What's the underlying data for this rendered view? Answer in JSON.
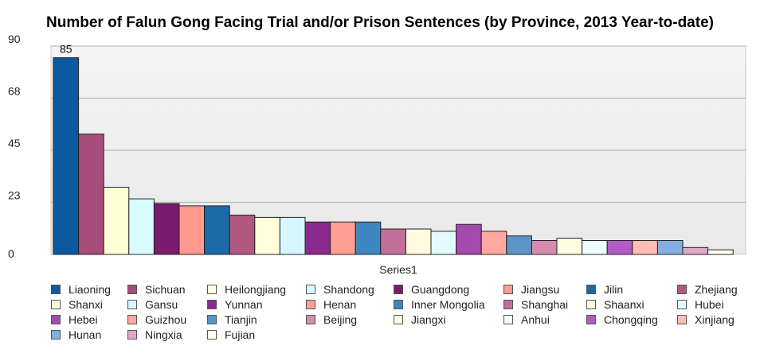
{
  "chart_data": {
    "type": "bar",
    "title": "Number of Falun Gong Facing Trial and/or Prison Sentences (by Province, 2013 Year-to-date)",
    "xlabel": "Series1",
    "ylabel": "",
    "ylim": [
      0,
      90
    ],
    "yticks": [
      "0",
      "23",
      "45",
      "68",
      "90"
    ],
    "ytick_values": [
      0,
      22.5,
      45,
      67.5,
      90
    ],
    "grid": true,
    "legend_position": "bottom",
    "categories": [
      "Liaoning",
      "Sichuan",
      "Heilongjiang",
      "Shandong",
      "Guangdong",
      "Jiangsu",
      "Jilin",
      "Zhejiang",
      "Shanxi",
      "Gansu",
      "Yunnan",
      "Henan",
      "Inner Mongolia",
      "Shanghai",
      "Shaanxi",
      "Hubei",
      "Hebei",
      "Guizhou",
      "Tianjin",
      "Beijing",
      "Jiangxi",
      "Anhui",
      "Chongqing",
      "Xinjiang",
      "Hunan",
      "Ningxia",
      "Fujian"
    ],
    "values": [
      85,
      52,
      29,
      24,
      22,
      21,
      21,
      17,
      16,
      16,
      14,
      14,
      14,
      11,
      11,
      10,
      13,
      10,
      8,
      6,
      7,
      6,
      6,
      6,
      6,
      3,
      2
    ],
    "colors": [
      "#0b5aa0",
      "#a64d79",
      "#ffffd6",
      "#d9fbff",
      "#7b1a6e",
      "#ff9a8f",
      "#1a6aa8",
      "#b0587f",
      "#ffffdb",
      "#d6f7ff",
      "#8b2a8c",
      "#ff9f94",
      "#3d86c0",
      "#c0709a",
      "#fffbe0",
      "#e3fbff",
      "#a54ab0",
      "#ffa99f",
      "#5a94c8",
      "#d58ab0",
      "#fffde0",
      "#eefdff",
      "#b25bc5",
      "#ffbcb4",
      "#85aee0",
      "#e0a8c8",
      "#fffff0"
    ],
    "data_labels": [
      {
        "index": 0,
        "text": "85"
      }
    ],
    "series": [
      {
        "name": "Series1"
      }
    ]
  }
}
